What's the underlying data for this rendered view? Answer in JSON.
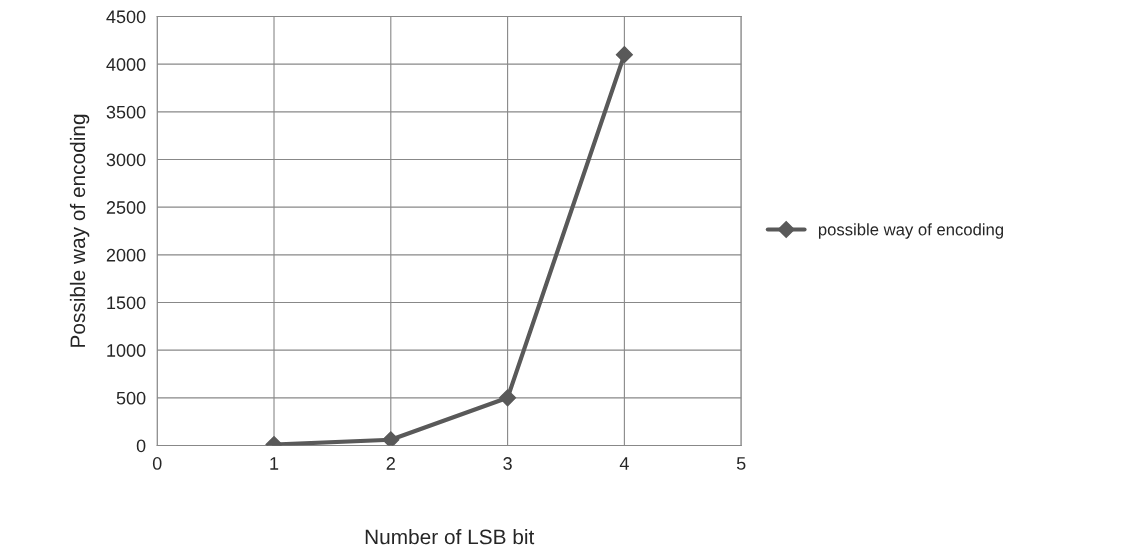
{
  "chart_data": {
    "type": "line",
    "xlabel": "Number of LSB bit",
    "ylabel": "Possible way of encoding",
    "x": [
      1,
      2,
      3,
      4
    ],
    "series": [
      {
        "name": "possible way of encoding",
        "color": "#595959",
        "values": [
          10,
          60,
          500,
          4100
        ]
      }
    ],
    "xlim": [
      0,
      5
    ],
    "xticks": [
      0,
      1,
      2,
      3,
      4,
      5
    ],
    "ylim": [
      0,
      4500
    ],
    "yticks": [
      0,
      500,
      1000,
      1500,
      2000,
      2500,
      3000,
      3500,
      4000,
      4500
    ],
    "grid": true,
    "legend": "right",
    "marker": "diamond",
    "line_style": "solid"
  }
}
